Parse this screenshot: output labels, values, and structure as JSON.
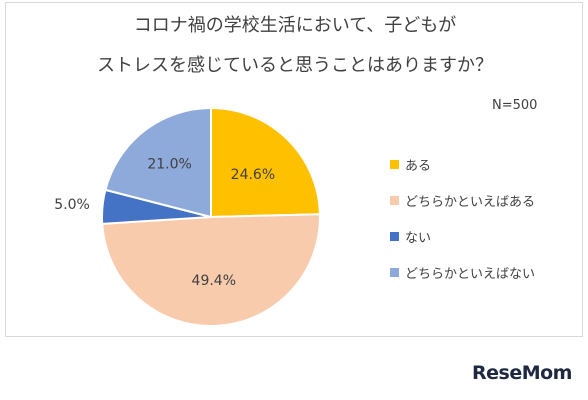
{
  "title_line1": "コロナ禍の学校生活において、子どもが",
  "title_line2": "ストレスを感じていると思うことはありますか？",
  "n_label": "N=500",
  "logo": "ReseMom",
  "chart_data": {
    "type": "pie",
    "title": "コロナ禍の学校生活において、子どもがストレスを感じていると思うことはありますか？",
    "note": "N=500",
    "legend_position": "right",
    "series": [
      {
        "name": "ある",
        "value": 24.6,
        "label": "24.6%",
        "color": "#ffc000"
      },
      {
        "name": "どちらかといえばある",
        "value": 49.4,
        "label": "49.4%",
        "color": "#f8cbad"
      },
      {
        "name": "ない",
        "value": 5.0,
        "label": "5.0%",
        "color": "#4472c4"
      },
      {
        "name": "どちらかといえばない",
        "value": 21.0,
        "label": "21.0%",
        "color": "#8eaadb"
      }
    ]
  }
}
